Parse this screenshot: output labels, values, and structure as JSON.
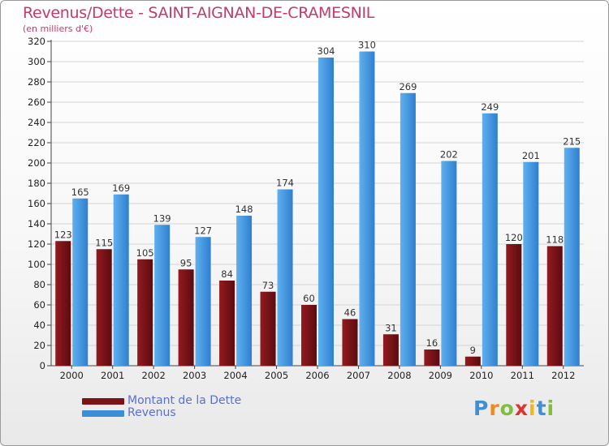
{
  "chart_data": {
    "type": "bar",
    "title": "Revenus/Dette - SAINT-AIGNAN-DE-CRAMESNIL",
    "subtitle": "(en milliers d'€)",
    "categories": [
      "2000",
      "2001",
      "2002",
      "2003",
      "2004",
      "2005",
      "2006",
      "2007",
      "2008",
      "2009",
      "2010",
      "2011",
      "2012"
    ],
    "series": [
      {
        "name": "Montant de la Dette",
        "color": "#7a1418",
        "values": [
          123,
          115,
          105,
          95,
          84,
          73,
          60,
          46,
          31,
          16,
          9,
          120,
          118
        ]
      },
      {
        "name": "Revenus",
        "color": "#3b8fd9",
        "values": [
          165,
          169,
          139,
          127,
          148,
          174,
          304,
          310,
          269,
          202,
          249,
          201,
          215
        ]
      }
    ],
    "ylim": [
      0,
      320
    ],
    "yticks": [
      0,
      20,
      40,
      60,
      80,
      100,
      120,
      140,
      160,
      180,
      200,
      220,
      240,
      260,
      280,
      300,
      320
    ],
    "grid": true,
    "legend": "bottom-left"
  },
  "brand": {
    "letters": [
      "P",
      "r",
      "o",
      "x",
      "i",
      "t",
      "i"
    ],
    "colors": [
      "#3d8fd6",
      "#f08a1c",
      "#7fbf3a",
      "#e0322e",
      "#f0b81c",
      "#3d8fd6",
      "#7fbf3a"
    ]
  }
}
